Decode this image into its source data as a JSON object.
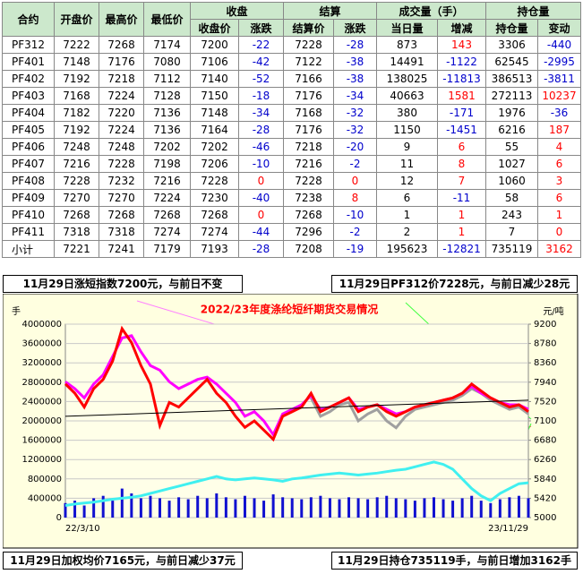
{
  "table": {
    "header_groups": [
      "合约",
      "开盘价",
      "最高价",
      "最低价",
      "收盘",
      "结算",
      "成交量（手）",
      "持仓量"
    ],
    "subheaders": [
      "收盘价",
      "涨跌",
      "结算价",
      "涨跌",
      "当日量",
      "增减",
      "持仓量",
      "变动"
    ],
    "rows": [
      [
        "PF312",
        7222,
        7268,
        7174,
        7200,
        -22,
        7228,
        -28,
        873,
        143,
        3306,
        -440
      ],
      [
        "PF401",
        7148,
        7176,
        7080,
        7106,
        -42,
        7122,
        -38,
        14491,
        -1122,
        62545,
        -2995
      ],
      [
        "PF402",
        7192,
        7218,
        7112,
        7140,
        -52,
        7166,
        -38,
        138025,
        -11813,
        386513,
        -3811
      ],
      [
        "PF403",
        7168,
        7224,
        7128,
        7150,
        -18,
        7176,
        -34,
        40663,
        1581,
        272113,
        10237
      ],
      [
        "PF404",
        7182,
        7220,
        7136,
        7148,
        -34,
        7168,
        -32,
        380,
        -171,
        1976,
        -36
      ],
      [
        "PF405",
        7192,
        7224,
        7136,
        7164,
        -28,
        7176,
        -32,
        1150,
        -1451,
        6216,
        187
      ],
      [
        "PF406",
        7248,
        7248,
        7202,
        7202,
        -46,
        7218,
        -20,
        9,
        6,
        55,
        4
      ],
      [
        "PF407",
        7216,
        7228,
        7198,
        7206,
        -10,
        7216,
        -2,
        11,
        8,
        1027,
        6
      ],
      [
        "PF408",
        7228,
        7232,
        7216,
        7228,
        0,
        7228,
        0,
        12,
        7,
        1060,
        3
      ],
      [
        "PF409",
        7270,
        7270,
        7224,
        7230,
        -40,
        7238,
        8,
        6,
        -11,
        58,
        6
      ],
      [
        "PF410",
        7268,
        7268,
        7268,
        7268,
        0,
        7268,
        -10,
        1,
        1,
        243,
        1
      ],
      [
        "PF411",
        7318,
        7318,
        7274,
        7274,
        -44,
        7296,
        -2,
        2,
        1,
        7,
        0
      ],
      [
        "小计",
        7221,
        7241,
        7179,
        7193,
        -28,
        7208,
        -19,
        195623,
        -12821,
        735119,
        3162
      ]
    ]
  },
  "annotations": [
    "11月29日涨短指数7200元，与前日不变",
    "11月29日PF312价7228元，与前日减少28元",
    "11月29日加权均价7165元，与前日减少37元",
    "11月29日持仓735119手，与前日增加3162手"
  ],
  "chart_data": {
    "type": "combo",
    "title": "2022/23年度涤纶短纤期货交易情况",
    "y_label": "手",
    "y2_label": "元/吨",
    "categories": [
      "22/3/10",
      null,
      null,
      null,
      null,
      null,
      null,
      null,
      null,
      null,
      null,
      null,
      null,
      null,
      null,
      null,
      null,
      null,
      null,
      null,
      null,
      null,
      null,
      null,
      null,
      null,
      null,
      null,
      null,
      null,
      null,
      null,
      null,
      null,
      null,
      null,
      null,
      null,
      null,
      null,
      null,
      null,
      null,
      null,
      null,
      null,
      null,
      null,
      null,
      "23/11/29"
    ],
    "ylim": [
      0,
      4000000
    ],
    "yticks": [
      0,
      400000,
      800000,
      1200000,
      1600000,
      2000000,
      2400000,
      2800000,
      3200000,
      3600000,
      4000000
    ],
    "y2lim": [
      5000,
      9200
    ],
    "y2ticks": [
      5000,
      5420,
      5840,
      6260,
      6680,
      7100,
      7520,
      7940,
      8360,
      8780,
      9200
    ],
    "grid": true,
    "bars": {
      "color": "#1010d0",
      "values": [
        300000,
        350000,
        250000,
        400000,
        450000,
        350000,
        600000,
        500000,
        400000,
        450000,
        400000,
        350000,
        420000,
        380000,
        450000,
        400000,
        500000,
        420000,
        380000,
        450000,
        400000,
        350000,
        480000,
        420000,
        400000,
        380000,
        420000,
        450000,
        400000,
        380000,
        420000,
        400000,
        380000,
        420000,
        450000,
        400000,
        380000,
        350000,
        400000,
        420000,
        380000,
        350000,
        400000,
        450000,
        350000,
        300000,
        380000,
        420000,
        450000,
        400000
      ]
    },
    "lines": [
      {
        "color": "#40f0f0",
        "axis": "y",
        "values": [
          250000,
          280000,
          300000,
          320000,
          350000,
          380000,
          400000,
          420000,
          450000,
          500000,
          550000,
          600000,
          650000,
          700000,
          750000,
          800000,
          850000,
          800000,
          780000,
          800000,
          820000,
          800000,
          780000,
          750000,
          800000,
          820000,
          850000,
          880000,
          900000,
          920000,
          900000,
          880000,
          900000,
          920000,
          950000,
          980000,
          1000000,
          1050000,
          1100000,
          1150000,
          1100000,
          1000000,
          800000,
          600000,
          450000,
          350000,
          500000,
          600000,
          700000,
          720000
        ]
      },
      {
        "color": "#a0a0a0",
        "axis": "y2",
        "values": [
          null,
          null,
          null,
          null,
          null,
          null,
          null,
          null,
          null,
          null,
          null,
          null,
          null,
          null,
          null,
          null,
          null,
          null,
          null,
          null,
          null,
          null,
          null,
          null,
          null,
          null,
          7600,
          7200,
          7300,
          7450,
          7500,
          7100,
          7250,
          7350,
          7100,
          6950,
          7200,
          7350,
          7400,
          7450,
          7500,
          7550,
          7650,
          7800,
          7700,
          7550,
          7450,
          7350,
          7400,
          7250
        ]
      },
      {
        "color": "#ff00ff",
        "axis": "y2",
        "values": [
          7950,
          7800,
          7600,
          7900,
          8100,
          8500,
          8900,
          8950,
          8600,
          8300,
          8200,
          7950,
          7800,
          7900,
          8000,
          8050,
          7900,
          7700,
          7500,
          7200,
          7300,
          7100,
          6800,
          7250,
          7350,
          7450,
          7650,
          7350,
          7400,
          7500,
          7600,
          7350,
          7400,
          7450,
          7350,
          7250,
          7300,
          7400,
          7450,
          7500,
          7550,
          7600,
          7700,
          7850,
          7700,
          7600,
          7500,
          7450,
          7450,
          7350
        ]
      },
      {
        "color": "#ff0000",
        "axis": "y2",
        "values": [
          7900,
          7700,
          7400,
          7800,
          8000,
          8400,
          9100,
          8800,
          8300,
          7900,
          7000,
          7500,
          7400,
          7600,
          7800,
          8000,
          7700,
          7500,
          7200,
          6960,
          7100,
          6900,
          6700,
          7200,
          7300,
          7400,
          7700,
          7300,
          7400,
          7500,
          7600,
          7300,
          7400,
          7450,
          7300,
          7200,
          7300,
          7400,
          7450,
          7500,
          7550,
          7600,
          7700,
          7900,
          7750,
          7600,
          7500,
          7400,
          7450,
          7300
        ]
      }
    ],
    "trend": [
      7200,
      7550
    ]
  }
}
